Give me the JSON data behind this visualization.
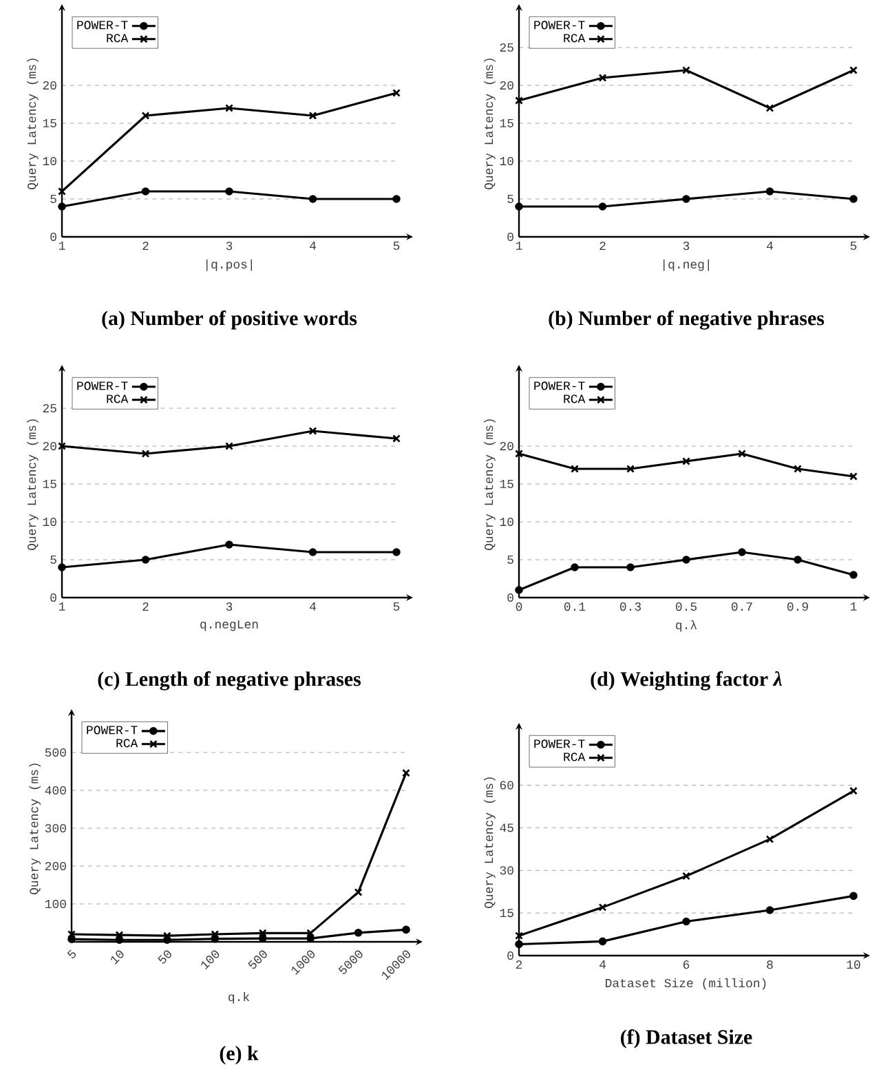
{
  "chart_data": [
    {
      "type": "line",
      "title": "(a) Number of positive words",
      "xlabel": "|q.pos|",
      "ylabel": "Query Latency (ms)",
      "categories": [
        "1",
        "2",
        "3",
        "4",
        "5"
      ],
      "ylim": [
        0,
        30
      ],
      "yticks": [
        0,
        5,
        10,
        15,
        20
      ],
      "grid": "y",
      "legend": "top left",
      "series": [
        {
          "name": "POWER-T",
          "color": "#000000",
          "marker": "circle",
          "values": [
            4,
            6,
            6,
            5,
            5
          ]
        },
        {
          "name": "RCA",
          "color": "#000000",
          "marker": "cross",
          "values": [
            6,
            16,
            17,
            16,
            19
          ]
        }
      ]
    },
    {
      "type": "line",
      "title": "(b) Number of negative phrases",
      "xlabel": "|q.neg|",
      "ylabel": "Query Latency (ms)",
      "categories": [
        "1",
        "2",
        "3",
        "4",
        "5"
      ],
      "ylim": [
        0,
        30
      ],
      "yticks": [
        0,
        5,
        10,
        15,
        20,
        25
      ],
      "grid": "y",
      "legend": "top left",
      "series": [
        {
          "name": "POWER-T",
          "color": "#000000",
          "marker": "circle",
          "values": [
            4,
            4,
            5,
            6,
            5
          ]
        },
        {
          "name": "RCA",
          "color": "#000000",
          "marker": "cross",
          "values": [
            18,
            21,
            22,
            17,
            22
          ]
        }
      ]
    },
    {
      "type": "line",
      "title": "(c) Length of negative phrases",
      "xlabel": "q.negLen",
      "ylabel": "Query Latency (ms)",
      "categories": [
        "1",
        "2",
        "3",
        "4",
        "5"
      ],
      "ylim": [
        0,
        30
      ],
      "yticks": [
        0,
        5,
        10,
        15,
        20,
        25
      ],
      "grid": "y",
      "legend": "top left",
      "series": [
        {
          "name": "POWER-T",
          "color": "#000000",
          "marker": "circle",
          "values": [
            4,
            5,
            7,
            6,
            6
          ]
        },
        {
          "name": "RCA",
          "color": "#000000",
          "marker": "cross",
          "values": [
            20,
            19,
            20,
            22,
            21
          ]
        }
      ]
    },
    {
      "type": "line",
      "title": "(d) Weighting factor *λ*",
      "xlabel": "q.λ",
      "ylabel": "Query Latency (ms)",
      "categories": [
        "0",
        "0.1",
        "0.3",
        "0.5",
        "0.7",
        "0.9",
        "1"
      ],
      "ylim": [
        0,
        30
      ],
      "yticks": [
        0,
        5,
        10,
        15,
        20
      ],
      "grid": "y",
      "legend": "top left",
      "series": [
        {
          "name": "POWER-T",
          "color": "#000000",
          "marker": "circle",
          "values": [
            1,
            4,
            4,
            5,
            6,
            5,
            3
          ]
        },
        {
          "name": "RCA",
          "color": "#000000",
          "marker": "cross",
          "values": [
            19,
            17,
            17,
            18,
            19,
            17,
            16
          ]
        }
      ]
    },
    {
      "type": "line",
      "title": "(e) k",
      "xlabel": "q.k",
      "ylabel": "Query Latency (ms)",
      "categories": [
        "5",
        "10",
        "50",
        "100",
        "500",
        "1000",
        "5000",
        "10000"
      ],
      "ylim": [
        0,
        600
      ],
      "yticks": [
        100,
        200,
        300,
        400,
        500
      ],
      "grid": "y",
      "legend": "top left",
      "series": [
        {
          "name": "POWER-T",
          "color": "#000000",
          "marker": "circle",
          "values": [
            7,
            5,
            5,
            8,
            9,
            9,
            24,
            32
          ]
        },
        {
          "name": "RCA",
          "color": "#000000",
          "marker": "cross",
          "values": [
            20,
            18,
            16,
            20,
            23,
            23,
            131,
            446
          ]
        }
      ]
    },
    {
      "type": "line",
      "title": "(f) Dataset Size",
      "xlabel": "Dataset Size (million)",
      "ylabel": "Query Latency (ms)",
      "x": [
        2,
        4,
        6,
        8,
        10
      ],
      "xlim": [
        2,
        10
      ],
      "xticks": [
        2,
        4,
        6,
        8,
        10
      ],
      "ylim": [
        0,
        80
      ],
      "yticks": [
        0,
        15,
        30,
        45,
        60
      ],
      "grid": "y",
      "legend": "top left",
      "series": [
        {
          "name": "POWER-T",
          "color": "#000000",
          "marker": "circle",
          "values": [
            4,
            5,
            12,
            16,
            21
          ]
        },
        {
          "name": "RCA",
          "color": "#000000",
          "marker": "cross",
          "values": [
            7,
            17,
            28,
            41,
            58
          ]
        }
      ]
    }
  ]
}
